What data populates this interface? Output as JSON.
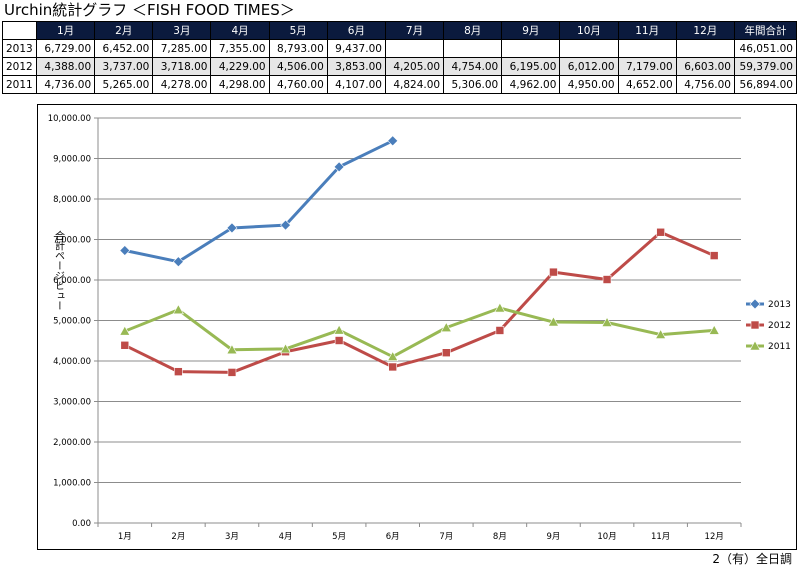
{
  "title": "Urchin統計グラフ ＜FISH FOOD TIMES＞",
  "table": {
    "headers": [
      "1月",
      "2月",
      "3月",
      "4月",
      "5月",
      "6月",
      "7月",
      "8月",
      "9月",
      "10月",
      "11月",
      "12月",
      "年間合計"
    ],
    "rows": [
      {
        "year": "2013",
        "values": [
          "6,729.00",
          "6,452.00",
          "7,285.00",
          "7,355.00",
          "8,793.00",
          "9,437.00",
          "",
          "",
          "",
          "",
          "",
          "",
          "46,051.00"
        ]
      },
      {
        "year": "2012",
        "values": [
          "4,388.00",
          "3,737.00",
          "3,718.00",
          "4,229.00",
          "4,506.00",
          "3,853.00",
          "4,205.00",
          "4,754.00",
          "6,195.00",
          "6,012.00",
          "7,179.00",
          "6,603.00",
          "59,379.00"
        ]
      },
      {
        "year": "2011",
        "values": [
          "4,736.00",
          "5,265.00",
          "4,278.00",
          "4,298.00",
          "4,760.00",
          "4,107.00",
          "4,824.00",
          "5,306.00",
          "4,962.00",
          "4,950.00",
          "4,652.00",
          "4,756.00",
          "56,894.00"
        ]
      }
    ]
  },
  "footer": "2（有）全日調",
  "chart_data": {
    "type": "line",
    "categories": [
      "1月",
      "2月",
      "3月",
      "4月",
      "5月",
      "6月",
      "7月",
      "8月",
      "9月",
      "10月",
      "11月",
      "12月"
    ],
    "ylabel": "合計ページビュー",
    "ylim": [
      0,
      10000
    ],
    "yticks": [
      "0.00",
      "1,000.00",
      "2,000.00",
      "3,000.00",
      "4,000.00",
      "5,000.00",
      "6,000.00",
      "7,000.00",
      "8,000.00",
      "9,000.00",
      "10,000.00"
    ],
    "grid": true,
    "legend": "right",
    "series": [
      {
        "name": "2013",
        "color": "#4a7ebb",
        "marker": "diamond",
        "values": [
          6729,
          6452,
          7285,
          7355,
          8793,
          9437,
          null,
          null,
          null,
          null,
          null,
          null
        ]
      },
      {
        "name": "2012",
        "color": "#be4b48",
        "marker": "square",
        "values": [
          4388,
          3737,
          3718,
          4229,
          4506,
          3853,
          4205,
          4754,
          6195,
          6012,
          7179,
          6603
        ]
      },
      {
        "name": "2011",
        "color": "#98b954",
        "marker": "triangle",
        "values": [
          4736,
          5265,
          4278,
          4298,
          4760,
          4107,
          4824,
          5306,
          4962,
          4950,
          4652,
          4756
        ]
      }
    ]
  }
}
